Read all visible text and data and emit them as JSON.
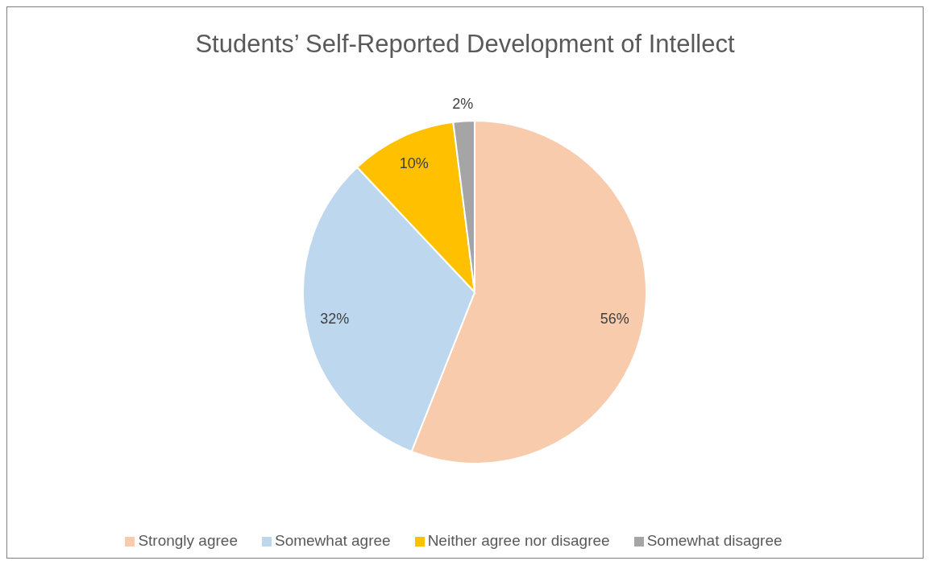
{
  "chart_data": {
    "type": "pie",
    "title": "Students’ Self-Reported Development of Intellect",
    "categories": [
      "Strongly agree",
      "Somewhat agree",
      "Neither agree nor disagree",
      "Somewhat disagree"
    ],
    "values": [
      56,
      32,
      10,
      2
    ],
    "colors": [
      "#f8cbad",
      "#bdd7ee",
      "#ffc000",
      "#a5a5a5"
    ],
    "value_labels": [
      "56%",
      "32%",
      "10%",
      "2%"
    ],
    "legend": "bottom"
  }
}
